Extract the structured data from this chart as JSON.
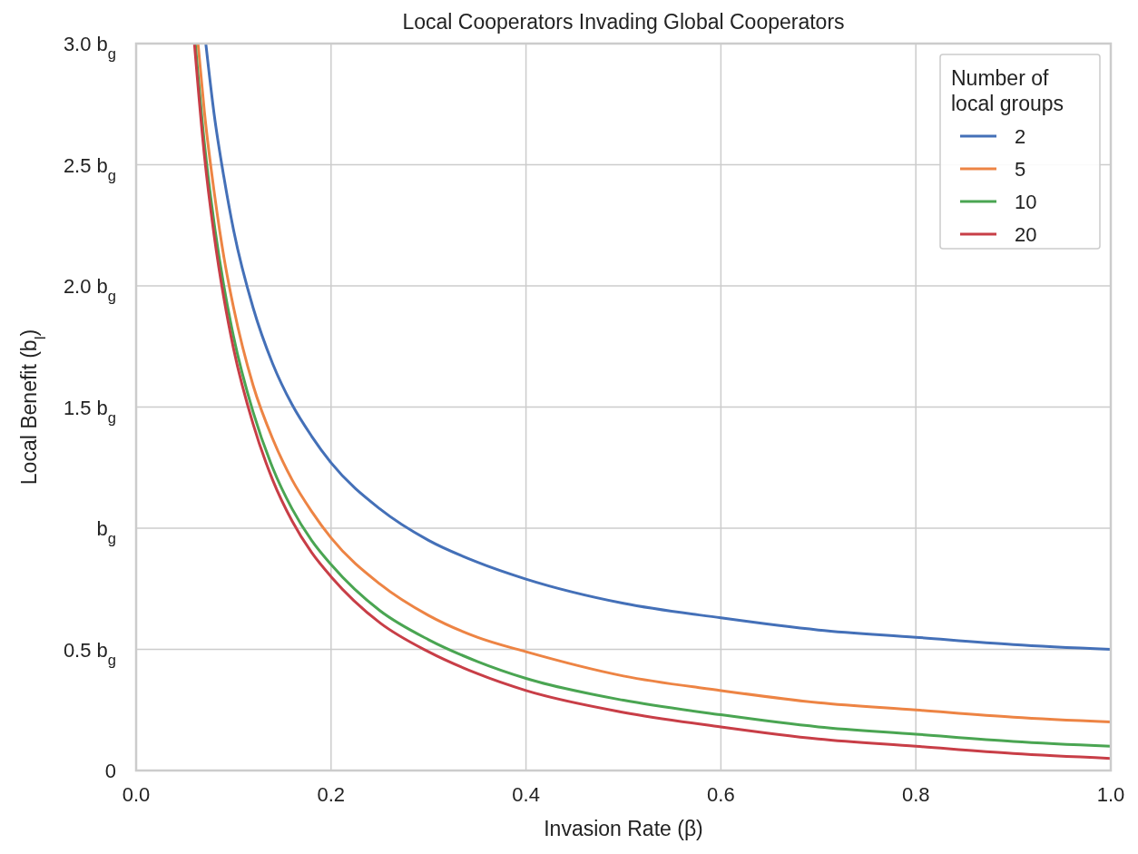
{
  "chart_data": {
    "type": "line",
    "title": "Local Cooperators Invading Global Cooperators",
    "xlabel": "Invasion Rate (β)",
    "ylabel": "Local Benefit (b$_{l}$)",
    "legend_title": "Number of local groups",
    "legend": "top right",
    "grid": true,
    "marker": "none",
    "line_style": "solid",
    "xlim": [
      0,
      1
    ],
    "ylim": [
      0,
      3
    ],
    "xticks": [
      {
        "value": 0,
        "label": "0.0"
      },
      {
        "value": 0.2,
        "label": "0.2"
      },
      {
        "value": 0.4,
        "label": "0.4"
      },
      {
        "value": 0.6,
        "label": "0.6"
      },
      {
        "value": 0.8,
        "label": "0.8"
      },
      {
        "value": 1,
        "label": "1.0"
      }
    ],
    "yticks": [
      0,
      {
        "value": 0.5,
        "label": "0.5 b$_{g}$"
      },
      {
        "value": 1,
        "label": "b$_{g}$"
      },
      {
        "value": 1.5,
        "label": "1.5 b$_{g}$"
      },
      {
        "value": 2,
        "label": "2.0 b$_{g}$"
      },
      {
        "value": 2.5,
        "label": "2.5 b$_{g}$"
      },
      {
        "value": 3,
        "label": "3.0 b$_{g}$"
      }
    ],
    "series": [
      {
        "name": "2",
        "color": "#4470b8",
        "x": [
          0.0715,
          0.08,
          0.09,
          0.1,
          0.12,
          0.14,
          0.16,
          0.18,
          0.2,
          0.25,
          0.3,
          0.35,
          0.4,
          0.5,
          0.6,
          0.7,
          0.8,
          0.9,
          1
        ],
        "values": [
          3.0,
          2.71,
          2.45,
          2.23,
          1.91,
          1.68,
          1.51,
          1.38,
          1.27,
          1.08,
          0.95,
          0.86,
          0.79,
          0.69,
          0.63,
          0.58,
          0.55,
          0.52,
          0.5
        ]
      },
      {
        "name": "5",
        "color": "#ed8444",
        "x": [
          0.0635,
          0.07,
          0.08,
          0.09,
          0.1,
          0.12,
          0.14,
          0.16,
          0.18,
          0.2,
          0.25,
          0.3,
          0.35,
          0.4,
          0.5,
          0.6,
          0.7,
          0.8,
          0.9,
          1
        ],
        "values": [
          3.0,
          2.72,
          2.39,
          2.12,
          1.91,
          1.59,
          1.37,
          1.2,
          1.07,
          0.96,
          0.77,
          0.64,
          0.55,
          0.49,
          0.39,
          0.33,
          0.28,
          0.25,
          0.22,
          0.2
        ]
      },
      {
        "name": "10",
        "color": "#4aa552",
        "x": [
          0.0607,
          0.07,
          0.08,
          0.09,
          0.1,
          0.12,
          0.14,
          0.16,
          0.18,
          0.2,
          0.25,
          0.3,
          0.35,
          0.4,
          0.5,
          0.6,
          0.7,
          0.8,
          0.9,
          1
        ],
        "values": [
          3.0,
          2.59,
          2.26,
          2.0,
          1.79,
          1.48,
          1.25,
          1.08,
          0.95,
          0.85,
          0.66,
          0.54,
          0.45,
          0.38,
          0.29,
          0.23,
          0.18,
          0.15,
          0.12,
          0.1
        ]
      },
      {
        "name": "20",
        "color": "#c83e47",
        "x": [
          0.0598,
          0.07,
          0.08,
          0.09,
          0.1,
          0.12,
          0.14,
          0.16,
          0.18,
          0.2,
          0.25,
          0.3,
          0.35,
          0.4,
          0.5,
          0.6,
          0.7,
          0.8,
          0.9,
          1
        ],
        "values": [
          3.0,
          2.54,
          2.21,
          1.95,
          1.74,
          1.43,
          1.2,
          1.03,
          0.9,
          0.8,
          0.61,
          0.49,
          0.4,
          0.33,
          0.24,
          0.18,
          0.13,
          0.1,
          0.07,
          0.05
        ]
      }
    ]
  }
}
